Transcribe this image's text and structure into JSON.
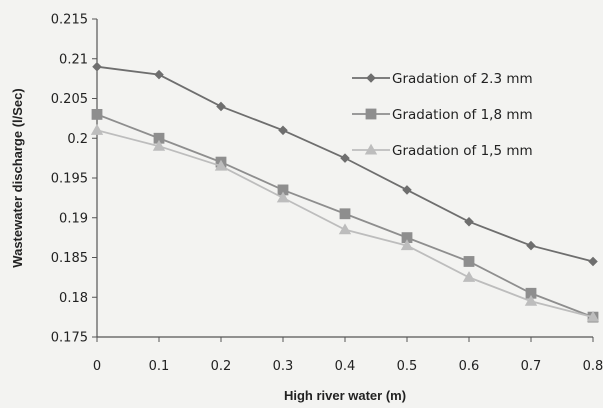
{
  "chart_data": {
    "type": "line",
    "title": "",
    "xlabel": "High river water (m)",
    "ylabel": "Wastewater discharge (l/Sec)",
    "x": [
      0,
      0.1,
      0.2,
      0.3,
      0.4,
      0.5,
      0.6,
      0.7,
      0.8
    ],
    "x_tick_labels": [
      "0",
      "0.1",
      "0.2",
      "0.3",
      "0.4",
      "0.5",
      "0.6",
      "0.7",
      "0.8"
    ],
    "ylim": [
      0.175,
      0.215
    ],
    "y_ticks": [
      0.175,
      0.18,
      0.185,
      0.19,
      0.195,
      0.2,
      0.205,
      0.21,
      0.215
    ],
    "y_tick_labels": [
      "0.175",
      "0.18",
      "0.185",
      "0.19",
      "0.195",
      "0.2",
      "0.205",
      "0.21",
      "0.215"
    ],
    "grid": false,
    "legend_position": "right",
    "series": [
      {
        "name": "Gradation of 2.3 mm",
        "marker": "diamond",
        "color": "#6e6e6e",
        "values": [
          0.209,
          0.208,
          0.204,
          0.201,
          0.1975,
          0.1935,
          0.1895,
          0.1865,
          0.1845
        ]
      },
      {
        "name": "Gradation of 1,8 mm",
        "marker": "square",
        "color": "#8e8e8e",
        "values": [
          0.203,
          0.2,
          0.197,
          0.1935,
          0.1905,
          0.1875,
          0.1845,
          0.1805,
          0.1775
        ]
      },
      {
        "name": "Gradation of 1,5 mm",
        "marker": "triangle",
        "color": "#bdbdbd",
        "values": [
          0.201,
          0.199,
          0.1965,
          0.1925,
          0.1885,
          0.1865,
          0.1825,
          0.1795,
          0.1775
        ]
      }
    ]
  }
}
